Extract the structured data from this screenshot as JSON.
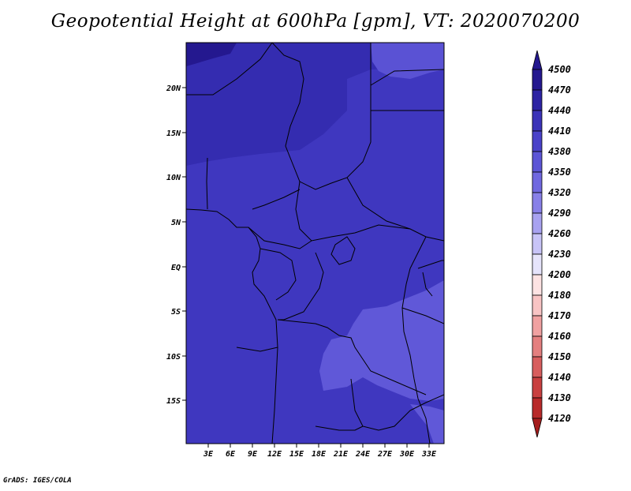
{
  "title": "Geopotential Height at 600hPa [gpm], VT: 2020070200",
  "credit": "GrADS: IGES/COLA",
  "map": {
    "lat_labels": [
      "20N",
      "15N",
      "10N",
      "5N",
      "EQ",
      "5S",
      "10S",
      "15S"
    ],
    "lon_labels": [
      "3E",
      "6E",
      "9E",
      "12E",
      "15E",
      "18E",
      "21E",
      "24E",
      "27E",
      "30E",
      "33E"
    ]
  },
  "colorbar": {
    "levels": [
      "4500",
      "4470",
      "4440",
      "4410",
      "4380",
      "4350",
      "4320",
      "4290",
      "4260",
      "4230",
      "4200",
      "4180",
      "4170",
      "4160",
      "4150",
      "4140",
      "4130",
      "4120"
    ],
    "colors": [
      "#24188f",
      "#2d23a3",
      "#3b33b8",
      "#4a42c9",
      "#5c55d6",
      "#7068e0",
      "#8880e8",
      "#a8a2f0",
      "#c8c4f7",
      "#e6e4fb",
      "#fde3e3",
      "#f8c4c4",
      "#f0a1a1",
      "#e47f7f",
      "#d85e5e",
      "#c94040",
      "#b82a2a",
      "#a51d1d"
    ]
  }
}
